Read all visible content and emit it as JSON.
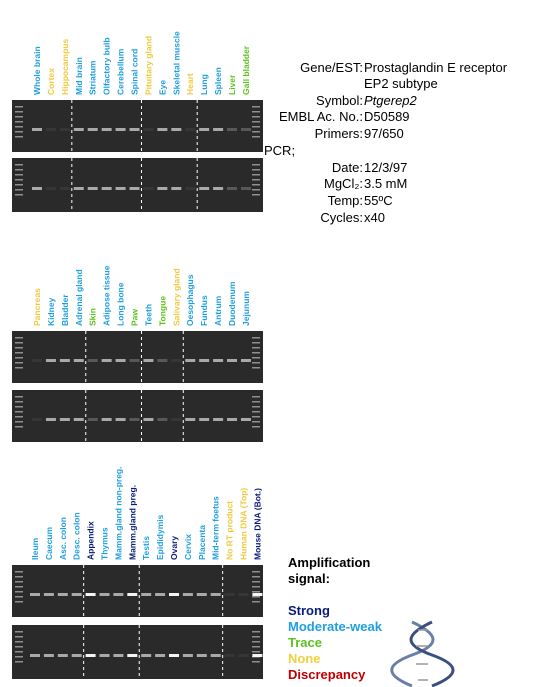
{
  "panels": [
    {
      "lanes": [
        {
          "label": "Whole brain",
          "color": "#1e9fe0"
        },
        {
          "label": "Cortex",
          "color": "#f0c93c"
        },
        {
          "label": "Hippocampus",
          "color": "#f0c93c"
        },
        {
          "label": "Mid brain",
          "color": "#1e9fe0"
        },
        {
          "label": "Striatum",
          "color": "#1e9fe0"
        },
        {
          "label": "Olfactory bulb",
          "color": "#1e9fe0"
        },
        {
          "label": "Cerebellum",
          "color": "#1e9fe0"
        },
        {
          "label": "Spinal cord",
          "color": "#1e9fe0"
        },
        {
          "label": "Pituitary gland",
          "color": "#f0c93c"
        },
        {
          "label": "Eye",
          "color": "#1e9fe0"
        },
        {
          "label": "Skeletal muscle",
          "color": "#1e9fe0"
        },
        {
          "label": "Heart",
          "color": "#f0c93c"
        },
        {
          "label": "Lung",
          "color": "#1e9fe0"
        },
        {
          "label": "Spleen",
          "color": "#1e9fe0"
        },
        {
          "label": "Liver",
          "color": "#5cc21e"
        },
        {
          "label": "Gall bladder",
          "color": "#5cc21e"
        }
      ]
    },
    {
      "lanes": [
        {
          "label": "Pancreas",
          "color": "#f0c93c"
        },
        {
          "label": "Kidney",
          "color": "#1e9fe0"
        },
        {
          "label": "Bladder",
          "color": "#1e9fe0"
        },
        {
          "label": "Adrenal gland",
          "color": "#1e9fe0"
        },
        {
          "label": "Skin",
          "color": "#5cc21e"
        },
        {
          "label": "Adipose tissue",
          "color": "#1e9fe0"
        },
        {
          "label": "Long bone",
          "color": "#1e9fe0"
        },
        {
          "label": "Paw",
          "color": "#5cc21e"
        },
        {
          "label": "Teeth",
          "color": "#1e9fe0"
        },
        {
          "label": "Tongue",
          "color": "#5cc21e"
        },
        {
          "label": "Salivary gland",
          "color": "#f0c93c"
        },
        {
          "label": "Oesophagus",
          "color": "#1e9fe0"
        },
        {
          "label": "Fundus",
          "color": "#1e9fe0"
        },
        {
          "label": "Antrum",
          "color": "#1e9fe0"
        },
        {
          "label": "Duodenum",
          "color": "#1e9fe0"
        },
        {
          "label": "Jejunum",
          "color": "#1e9fe0"
        }
      ]
    },
    {
      "lanes": [
        {
          "label": "Ileum",
          "color": "#1e9fe0"
        },
        {
          "label": "Caecum",
          "color": "#1e9fe0"
        },
        {
          "label": "Asc. colon",
          "color": "#1e9fe0"
        },
        {
          "label": "Desc. colon",
          "color": "#1e9fe0"
        },
        {
          "label": "Appendix",
          "color": "#0a1a7a"
        },
        {
          "label": "Thymus",
          "color": "#1e9fe0"
        },
        {
          "label": "Mamm.gland non-preg.",
          "color": "#1e9fe0"
        },
        {
          "label": "Mamm.gland preg.",
          "color": "#0a1a7a"
        },
        {
          "label": "Testis",
          "color": "#1e9fe0"
        },
        {
          "label": "Epididymis",
          "color": "#1e9fe0"
        },
        {
          "label": "Ovary",
          "color": "#0a1a7a"
        },
        {
          "label": "Cervix",
          "color": "#1e9fe0"
        },
        {
          "label": "Placenta",
          "color": "#1e9fe0"
        },
        {
          "label": "Mid-term foetus",
          "color": "#1e9fe0"
        },
        {
          "label": "No RT product",
          "color": "#f0c93c"
        },
        {
          "label": "Human DNA (Top)",
          "color": "#f0c93c"
        },
        {
          "label": "Mouse DNA (Bot.)",
          "color": "#0a1a7a"
        }
      ]
    }
  ],
  "info": [
    {
      "label": "Gene/EST:",
      "value": "Prostaglandin E receptor"
    },
    {
      "value": "EP2 subtype"
    },
    {
      "label": "Symbol:",
      "value": "Ptgerep2",
      "italic": true
    },
    {
      "label": "EMBL Ac. No.:",
      "value": "D50589"
    },
    {
      "label": "Primers:",
      "value": "97/650"
    },
    {
      "label": "PCR;"
    },
    {
      "label": "Date:",
      "value": "12/3/97"
    },
    {
      "label": "MgCl₂:",
      "value": "3.5 mM"
    },
    {
      "label": "Temp:",
      "value": "55ºC"
    },
    {
      "label": "Cycles:",
      "value": "x40"
    }
  ],
  "legend": {
    "title": [
      "Amplification",
      "signal:"
    ],
    "items": [
      {
        "label": "Strong",
        "color": "#0a1a7a"
      },
      {
        "label": "Moderate-weak",
        "color": "#1e9fe0"
      },
      {
        "label": "Trace",
        "color": "#5cc21e"
      },
      {
        "label": "None",
        "color": "#f0d040"
      },
      {
        "label": "Discrepancy",
        "color": "#c00000"
      }
    ]
  }
}
